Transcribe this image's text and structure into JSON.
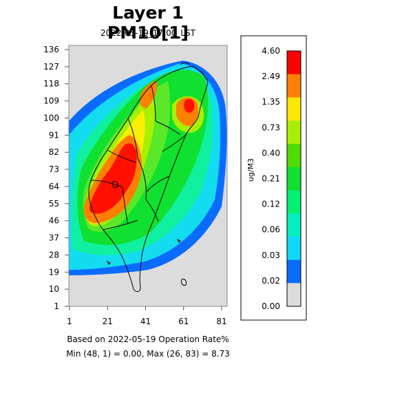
{
  "title": "Layer 1 PM10[1]",
  "subtitle": "2022-05-19_17:00_LST",
  "map": {
    "y_ticks": [
      "136",
      "127",
      "118",
      "109",
      "100",
      "91",
      "82",
      "73",
      "64",
      "55",
      "46",
      "37",
      "28",
      "19",
      "10",
      "1"
    ],
    "x_ticks": [
      "1",
      "21",
      "41",
      "61",
      "81"
    ],
    "background_color": "#dcdcdc",
    "colors": {
      "darkblue": "#0a6cff",
      "cyan": "#14dcf0",
      "teal": "#10f0a0",
      "green": "#10e030",
      "ygreen": "#5ae828",
      "lime": "#a8f000",
      "yellow": "#f8f000",
      "orange": "#ff8000",
      "red": "#ff1000"
    }
  },
  "legend": {
    "unit": "ug/M3",
    "labels": [
      "4.60",
      "2.49",
      "1.35",
      "0.73",
      "0.40",
      "0.21",
      "0.12",
      "0.06",
      "0.03",
      "0.02",
      "0.00"
    ],
    "colors": [
      "#ff0000",
      "#ff8000",
      "#ffe800",
      "#a8f000",
      "#50dc00",
      "#10e030",
      "#00f070",
      "#00f0c0",
      "#10d8f8",
      "#0a6cff",
      "#dcdcdc"
    ]
  },
  "footer": {
    "line1": "Based on 2022-05-19 Operation Rate%",
    "line2": "Min (48, 1) = 0.00, Max (26, 83) = 8.73"
  }
}
